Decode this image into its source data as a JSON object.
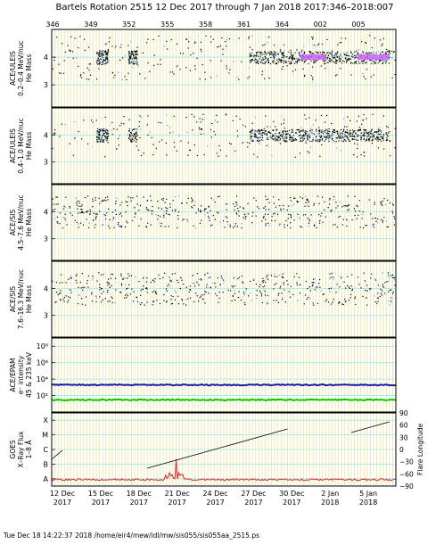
{
  "title": "Bartels Rotation 2515    12 Dec 2017 through 7 Jan 2018    2017:346–2018:007",
  "footer": "Tue Dec 18 14:22:37 2018   /home/eir4/mew/idl/mw/sis055/sis055aa_2515.ps",
  "colors": {
    "gridline": "#e8e49a",
    "cyanline": "#9fe6ec",
    "frame": "#000000",
    "magenta": "#cc66ff",
    "blue": "#1a1aa6",
    "green": "#00cc00",
    "red": "#dd2222"
  },
  "chart_data": [
    {
      "type": "scatter",
      "panel": "ULEIS 0.2-0.4",
      "ylabel": "ACE/ULEIS\n0.2–0.4 MeV/nuc\nHe Mass",
      "ylim": [
        2.2,
        5.0
      ],
      "yticks": [
        "3",
        "4"
      ],
      "yvalues": [
        3,
        4
      ],
      "series": [
        {
          "values": []
        }
      ]
    },
    {
      "type": "scatter",
      "panel": "ULEIS 0.4-1.0",
      "ylabel": "ACE/ULEIS\n0.4–1.0 MeV/nuc\nHe Mass",
      "ylim": [
        2.2,
        5.0
      ],
      "yticks": [
        "3",
        "4"
      ],
      "yvalues": [
        3,
        4
      ],
      "series": [
        {
          "values": []
        }
      ]
    },
    {
      "type": "scatter",
      "panel": "SIS 4.5-7.6",
      "ylabel": "ACE/SIS\n4.5–7.6 MeV/nuc\nHe Mass",
      "ylim": [
        2.2,
        5.0
      ],
      "yticks": [
        "3",
        "4"
      ],
      "yvalues": [
        3,
        4
      ],
      "series": [
        {
          "values": []
        }
      ]
    },
    {
      "type": "scatter",
      "panel": "SIS 7.6-16.3",
      "ylabel": "ACE/SIS\n7.6–16.3 MeV/nuc\nHe Mass",
      "ylim": [
        2.2,
        5.0
      ],
      "yticks": [
        "3",
        "4"
      ],
      "yvalues": [
        3,
        4
      ],
      "series": [
        {
          "values": []
        }
      ]
    },
    {
      "type": "line",
      "panel": "EPAM",
      "ylabel": "ACE/EPAM\ne⁻ intensity\n45 & 235 keV",
      "ylim": [
        1,
        1000000000
      ],
      "yscale": "log",
      "yticks": [
        "10²",
        "10⁴",
        "10⁶",
        "10⁸"
      ],
      "yvalues": [
        100,
        10000,
        1000000,
        100000000
      ],
      "series": [
        {
          "values": [
            2000
          ]
        },
        {
          "values": [
            30
          ]
        }
      ]
    },
    {
      "type": "line",
      "panel": "GOES",
      "ylabel": "GOES\nX–Ray Flux\n1–8 Å",
      "y2label": "Flare Longitude",
      "yticks": [
        "A",
        "B",
        "C",
        "M",
        "X"
      ],
      "y2ticks": [
        "90",
        "60",
        "30",
        "0",
        "−30",
        "−60",
        "−90"
      ],
      "y2lim": [
        -90,
        90
      ],
      "series": []
    }
  ],
  "xaxis": {
    "top_ticks": [
      "346",
      "349",
      "352",
      "355",
      "358",
      "361",
      "364",
      "002",
      "005"
    ],
    "bottom_ticks": [
      {
        "day": "12 Dec",
        "year": "2017"
      },
      {
        "day": "15 Dec",
        "year": "2017"
      },
      {
        "day": "18 Dec",
        "year": "2017"
      },
      {
        "day": "21 Dec",
        "year": "2017"
      },
      {
        "day": "24 Dec",
        "year": "2017"
      },
      {
        "day": "27 Dec",
        "year": "2017"
      },
      {
        "day": "30 Dec",
        "year": "2017"
      },
      {
        "day": "2 Jan",
        "year": "2018"
      },
      {
        "day": "5 Jan",
        "year": "2018"
      }
    ]
  }
}
